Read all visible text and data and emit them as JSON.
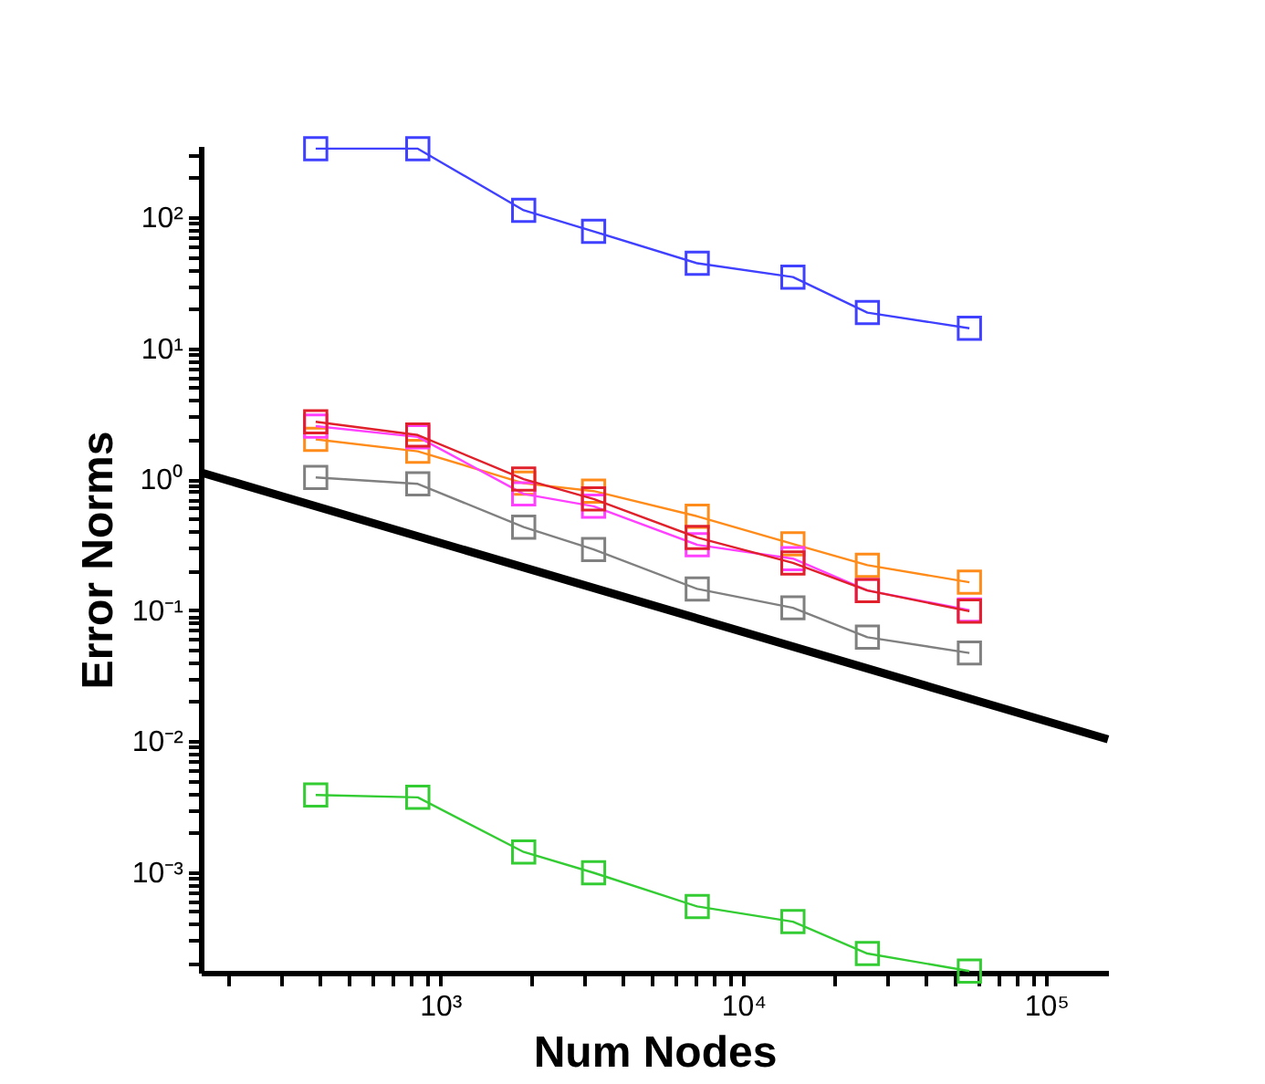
{
  "chart_data": {
    "type": "line",
    "xlabel": "Num Nodes",
    "ylabel": "Error Norms",
    "log": "xy",
    "grid": false,
    "marker": "square",
    "xlim": [
      162,
      160000
    ],
    "ylim": [
      0.00017,
      350
    ],
    "xticks": [
      {
        "value": 200,
        "label": null
      },
      {
        "value": 300,
        "label": null
      },
      {
        "value": 400,
        "label": null
      },
      {
        "value": 500,
        "label": null
      },
      {
        "value": 600,
        "label": null
      },
      {
        "value": 700,
        "label": null
      },
      {
        "value": 800,
        "label": null
      },
      {
        "value": 900,
        "label": null
      },
      {
        "value": 1000,
        "label": "10³"
      },
      {
        "value": 2000,
        "label": null
      },
      {
        "value": 3000,
        "label": null
      },
      {
        "value": 4000,
        "label": null
      },
      {
        "value": 5000,
        "label": null
      },
      {
        "value": 6000,
        "label": null
      },
      {
        "value": 7000,
        "label": null
      },
      {
        "value": 8000,
        "label": null
      },
      {
        "value": 9000,
        "label": null
      },
      {
        "value": 10000,
        "label": "10⁴"
      },
      {
        "value": 20000,
        "label": null
      },
      {
        "value": 30000,
        "label": null
      },
      {
        "value": 40000,
        "label": null
      },
      {
        "value": 50000,
        "label": null
      },
      {
        "value": 60000,
        "label": null
      },
      {
        "value": 70000,
        "label": null
      },
      {
        "value": 80000,
        "label": null
      },
      {
        "value": 90000,
        "label": null
      },
      {
        "value": 100000,
        "label": "10⁵"
      }
    ],
    "yticks": [
      {
        "value": 0.0002,
        "label": null
      },
      {
        "value": 0.0003,
        "label": null
      },
      {
        "value": 0.0004,
        "label": null
      },
      {
        "value": 0.0005,
        "label": null
      },
      {
        "value": 0.0006,
        "label": null
      },
      {
        "value": 0.0007,
        "label": null
      },
      {
        "value": 0.0008,
        "label": null
      },
      {
        "value": 0.0009,
        "label": null
      },
      {
        "value": 0.001,
        "label": "10⁻³"
      },
      {
        "value": 0.002,
        "label": null
      },
      {
        "value": 0.003,
        "label": null
      },
      {
        "value": 0.004,
        "label": null
      },
      {
        "value": 0.005,
        "label": null
      },
      {
        "value": 0.006,
        "label": null
      },
      {
        "value": 0.007,
        "label": null
      },
      {
        "value": 0.008,
        "label": null
      },
      {
        "value": 0.009,
        "label": null
      },
      {
        "value": 0.01,
        "label": "10⁻²"
      },
      {
        "value": 0.02,
        "label": null
      },
      {
        "value": 0.03,
        "label": null
      },
      {
        "value": 0.04,
        "label": null
      },
      {
        "value": 0.05,
        "label": null
      },
      {
        "value": 0.06,
        "label": null
      },
      {
        "value": 0.07,
        "label": null
      },
      {
        "value": 0.08,
        "label": null
      },
      {
        "value": 0.09,
        "label": null
      },
      {
        "value": 0.1,
        "label": "10⁻¹"
      },
      {
        "value": 0.2,
        "label": null
      },
      {
        "value": 0.3,
        "label": null
      },
      {
        "value": 0.4,
        "label": null
      },
      {
        "value": 0.5,
        "label": null
      },
      {
        "value": 0.6,
        "label": null
      },
      {
        "value": 0.7,
        "label": null
      },
      {
        "value": 0.8,
        "label": null
      },
      {
        "value": 0.9,
        "label": null
      },
      {
        "value": 1,
        "label": "10⁰"
      },
      {
        "value": 2,
        "label": null
      },
      {
        "value": 3,
        "label": null
      },
      {
        "value": 4,
        "label": null
      },
      {
        "value": 5,
        "label": null
      },
      {
        "value": 6,
        "label": null
      },
      {
        "value": 7,
        "label": null
      },
      {
        "value": 8,
        "label": null
      },
      {
        "value": 9,
        "label": null
      },
      {
        "value": 10,
        "label": "10¹"
      },
      {
        "value": 20,
        "label": null
      },
      {
        "value": 30,
        "label": null
      },
      {
        "value": 40,
        "label": null
      },
      {
        "value": 50,
        "label": null
      },
      {
        "value": 60,
        "label": null
      },
      {
        "value": 70,
        "label": null
      },
      {
        "value": 80,
        "label": null
      },
      {
        "value": 90,
        "label": null
      },
      {
        "value": 100,
        "label": "10²"
      },
      {
        "value": 200,
        "label": null
      },
      {
        "value": 300,
        "label": null
      }
    ],
    "x": [
      388,
      843,
      1885,
      3207,
      7050,
      14590,
      25700,
      55800
    ],
    "series": [
      {
        "color": "#000000",
        "marker": "none",
        "x": [
          162,
          160000
        ],
        "values": [
          1.125,
          0.0103
        ]
      },
      {
        "color": "#4040ff",
        "values": [
          334,
          334,
          113,
          78,
          44.5,
          34.9,
          18.7,
          14.2
        ]
      },
      {
        "color": "#ff8c1a",
        "values": [
          2.01,
          1.63,
          0.93,
          0.81,
          0.52,
          0.32,
          0.22,
          0.163
        ]
      },
      {
        "color": "#ff40ff",
        "values": [
          2.54,
          2.1,
          0.77,
          0.62,
          0.315,
          0.247,
          0.141,
          0.1
        ]
      },
      {
        "color": "#e0202a",
        "values": [
          2.74,
          2.17,
          1.0,
          0.705,
          0.358,
          0.229,
          0.141,
          0.098
        ]
      },
      {
        "color": "#808080",
        "values": [
          1.03,
          0.92,
          0.43,
          0.29,
          0.145,
          0.104,
          0.062,
          0.047
        ]
      },
      {
        "color": "#33cc33",
        "values": [
          0.00387,
          0.00371,
          0.00142,
          0.000985,
          0.000545,
          0.000417,
          0.000238,
          0.000175
        ]
      }
    ]
  }
}
